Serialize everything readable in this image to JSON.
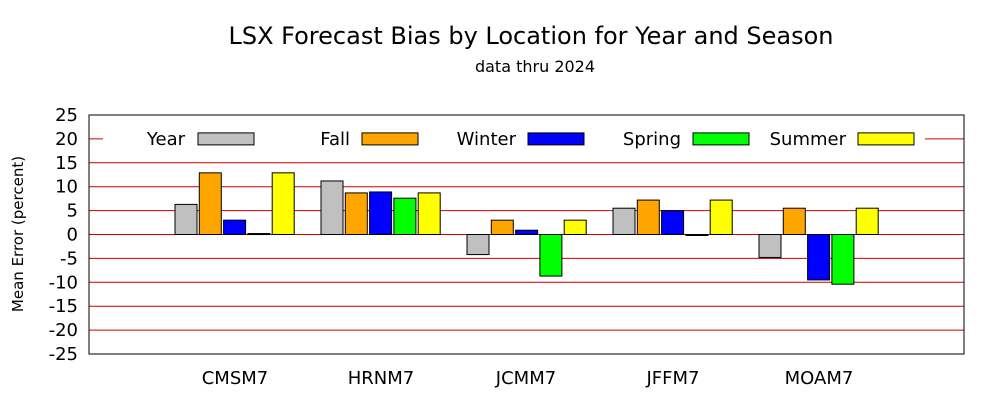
{
  "chart_data": {
    "type": "bar",
    "title": "LSX Forecast Bias by Location for Year and Season",
    "subtitle": "data thru 2024",
    "xlabel": "",
    "ylabel": "Mean Error (percent)",
    "ylim": [
      -25,
      25
    ],
    "yticks": [
      "25",
      "20",
      "15",
      "10",
      "5",
      "0",
      "-5",
      "-10",
      "-15",
      "-20",
      "-25"
    ],
    "grid": true,
    "legend_position": "top",
    "categories": [
      "CMSM7",
      "HRNM7",
      "JCMM7",
      "JFFM7",
      "MOAM7"
    ],
    "series": [
      {
        "name": "Year",
        "color": "#c0c0c0",
        "values": [
          6.3,
          11.2,
          -4.2,
          5.5,
          -4.8
        ]
      },
      {
        "name": "Fall",
        "color": "#ffa500",
        "values": [
          12.9,
          8.7,
          3.0,
          7.2,
          5.5
        ]
      },
      {
        "name": "Winter",
        "color": "#0000ff",
        "values": [
          3.0,
          8.9,
          0.9,
          5.0,
          -9.5
        ]
      },
      {
        "name": "Spring",
        "color": "#00ff00",
        "values": [
          0.2,
          7.6,
          -8.7,
          -0.2,
          -10.4
        ]
      },
      {
        "name": "Summer",
        "color": "#ffff00",
        "values": [
          12.9,
          8.7,
          3.0,
          7.2,
          5.5
        ]
      }
    ],
    "gridline_color": "#cc0000"
  }
}
